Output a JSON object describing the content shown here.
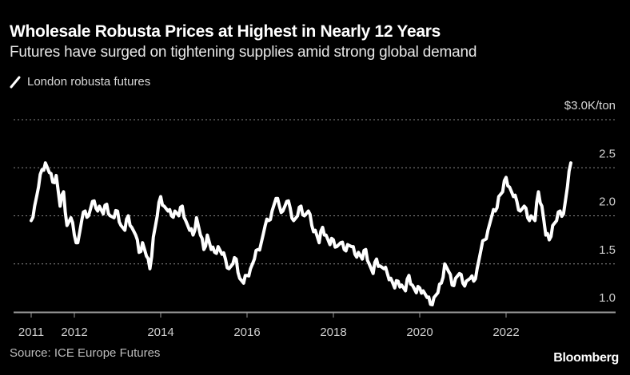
{
  "header": {
    "title": "Wholesale Robusta Prices at Highest in Nearly 12 Years",
    "subtitle": "Futures have surged on tightening supplies amid strong global demand"
  },
  "legend": {
    "items": [
      {
        "label": "London robusta futures",
        "icon": "line-swatch-icon",
        "color": "#ffffff"
      }
    ]
  },
  "footer": {
    "source": "Source: ICE Europe Futures",
    "brand": "Bloomberg"
  },
  "colors": {
    "background": "#000000",
    "line": "#ffffff",
    "grid": "#8a8a8a",
    "axis": "#9a9a9a"
  },
  "chart_data": {
    "type": "line",
    "title": "Wholesale Robusta Prices at Highest in Nearly 12 Years",
    "subtitle": "Futures have surged on tightening supplies amid strong global demand",
    "xlabel": "",
    "ylabel": "$K/ton",
    "unit_label": "$3.0K/ton",
    "ylim": [
      1.0,
      3.0
    ],
    "xlim": [
      2010.6,
      2024.6
    ],
    "y_ticks": [
      1.0,
      1.5,
      2.0,
      2.5,
      3.0
    ],
    "y_tick_labels": [
      "1.0",
      "1.5",
      "2.0",
      "2.5",
      "$3.0K/ton"
    ],
    "x_ticks": [
      2011,
      2012,
      2014,
      2016,
      2018,
      2020,
      2022
    ],
    "x_tick_labels": [
      "2011",
      "2012",
      "2014",
      "2016",
      "2018",
      "2020",
      "2022"
    ],
    "grid": true,
    "legend_position": "top-left",
    "series": [
      {
        "name": "London robusta futures",
        "x": [
          2011.0,
          2011.08,
          2011.17,
          2011.25,
          2011.33,
          2011.42,
          2011.5,
          2011.58,
          2011.67,
          2011.75,
          2011.83,
          2011.92,
          2012.0,
          2012.08,
          2012.17,
          2012.25,
          2012.33,
          2012.42,
          2012.5,
          2012.58,
          2012.67,
          2012.75,
          2012.83,
          2012.92,
          2013.0,
          2013.08,
          2013.17,
          2013.25,
          2013.33,
          2013.42,
          2013.5,
          2013.58,
          2013.67,
          2013.75,
          2013.83,
          2013.92,
          2014.0,
          2014.08,
          2014.17,
          2014.25,
          2014.33,
          2014.42,
          2014.5,
          2014.58,
          2014.67,
          2014.75,
          2014.83,
          2014.92,
          2015.0,
          2015.08,
          2015.17,
          2015.25,
          2015.33,
          2015.42,
          2015.5,
          2015.58,
          2015.67,
          2015.75,
          2015.83,
          2015.92,
          2016.0,
          2016.08,
          2016.17,
          2016.25,
          2016.33,
          2016.42,
          2016.5,
          2016.58,
          2016.67,
          2016.75,
          2016.83,
          2016.92,
          2017.0,
          2017.08,
          2017.17,
          2017.25,
          2017.33,
          2017.42,
          2017.5,
          2017.58,
          2017.67,
          2017.75,
          2017.83,
          2017.92,
          2018.0,
          2018.08,
          2018.17,
          2018.25,
          2018.33,
          2018.42,
          2018.5,
          2018.58,
          2018.67,
          2018.75,
          2018.83,
          2018.92,
          2019.0,
          2019.08,
          2019.17,
          2019.25,
          2019.33,
          2019.42,
          2019.5,
          2019.58,
          2019.67,
          2019.75,
          2019.83,
          2019.92,
          2020.0,
          2020.08,
          2020.17,
          2020.25,
          2020.33,
          2020.42,
          2020.5,
          2020.58,
          2020.67,
          2020.75,
          2020.83,
          2020.92,
          2021.0,
          2021.08,
          2021.17,
          2021.25,
          2021.33,
          2021.42,
          2021.5,
          2021.58,
          2021.67,
          2021.75,
          2021.83,
          2021.92,
          2022.0,
          2022.08,
          2022.17,
          2022.25,
          2022.33,
          2022.42,
          2022.5,
          2022.58,
          2022.67,
          2022.75,
          2022.83,
          2022.92,
          2023.0,
          2023.08,
          2023.17,
          2023.25,
          2023.33,
          2023.42,
          2023.5
        ],
        "values": [
          1.95,
          2.1,
          2.3,
          2.48,
          2.55,
          2.45,
          2.35,
          2.42,
          2.1,
          2.25,
          1.9,
          1.98,
          1.8,
          1.72,
          1.95,
          2.05,
          2.0,
          2.15,
          2.08,
          2.1,
          2.02,
          2.12,
          2.0,
          1.98,
          2.05,
          1.9,
          1.85,
          2.0,
          1.88,
          1.8,
          1.62,
          1.72,
          1.58,
          1.45,
          1.78,
          2.0,
          2.2,
          2.1,
          2.05,
          2.0,
          2.05,
          2.0,
          2.1,
          1.95,
          1.85,
          1.8,
          1.98,
          1.8,
          1.65,
          1.8,
          1.65,
          1.62,
          1.68,
          1.6,
          1.55,
          1.45,
          1.5,
          1.55,
          1.35,
          1.3,
          1.38,
          1.45,
          1.55,
          1.65,
          1.72,
          1.9,
          1.95,
          2.05,
          2.18,
          2.1,
          2.05,
          2.15,
          2.08,
          1.95,
          2.0,
          2.1,
          2.0,
          2.05,
          1.9,
          1.85,
          1.72,
          1.88,
          1.8,
          1.7,
          1.75,
          1.68,
          1.72,
          1.65,
          1.7,
          1.68,
          1.6,
          1.62,
          1.55,
          1.65,
          1.5,
          1.4,
          1.55,
          1.48,
          1.45,
          1.4,
          1.35,
          1.25,
          1.32,
          1.28,
          1.22,
          1.38,
          1.28,
          1.2,
          1.25,
          1.22,
          1.15,
          1.08,
          1.15,
          1.2,
          1.3,
          1.5,
          1.42,
          1.28,
          1.35,
          1.4,
          1.3,
          1.32,
          1.35,
          1.32,
          1.45,
          1.65,
          1.75,
          1.85,
          2.0,
          2.05,
          2.2,
          2.25,
          2.4,
          2.3,
          2.2,
          2.15,
          2.05,
          2.1,
          1.98,
          2.0,
          1.95,
          2.25,
          2.1,
          1.8,
          1.75,
          1.9,
          1.95,
          2.05,
          2.02,
          2.3,
          2.55
        ]
      }
    ]
  }
}
